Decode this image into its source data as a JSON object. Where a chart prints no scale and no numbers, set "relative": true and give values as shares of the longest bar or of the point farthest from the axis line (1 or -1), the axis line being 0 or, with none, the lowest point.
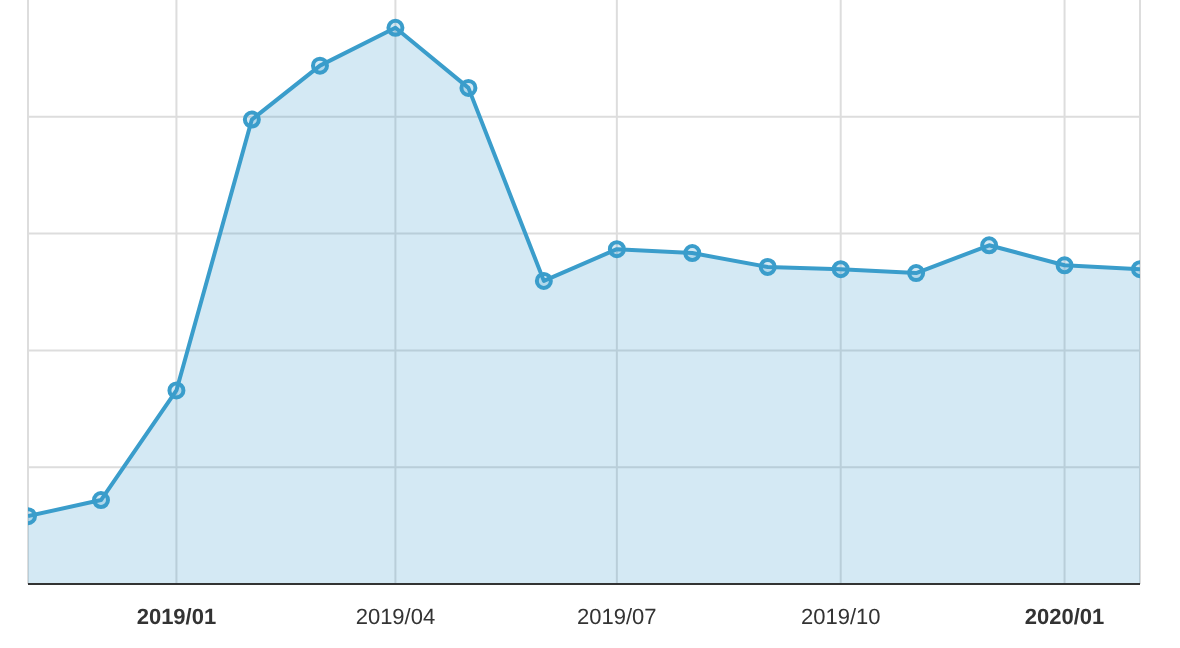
{
  "chart_data": {
    "type": "area",
    "relative": true,
    "x": [
      "2018-11",
      "2018-12",
      "2019-01",
      "2019-02",
      "2019-03",
      "2019-04",
      "2019-05",
      "2019-06",
      "2019-07",
      "2019-08",
      "2019-09",
      "2019-10",
      "2019-11",
      "2019-12",
      "2020-01",
      "2020-02"
    ],
    "series": [
      {
        "color": "#3a9dcb",
        "values": [
          0.122,
          0.151,
          0.348,
          0.835,
          0.932,
          1,
          0.892,
          0.545,
          0.602,
          0.595,
          0.57,
          0.566,
          0.559,
          0.609,
          0.573,
          0.566
        ]
      }
    ],
    "xlim": [
      "2018-11",
      "2020-02"
    ],
    "xticks": [
      {
        "value": "2019-01",
        "label": "2019/01"
      },
      {
        "value": "2019-04",
        "label": "2019/04"
      },
      {
        "value": "2019-07",
        "label": "2019/07"
      },
      {
        "value": "2019-10",
        "label": "2019/10"
      },
      {
        "value": "2020-01",
        "label": "2020/01"
      }
    ],
    "grid": true,
    "marker": "circle",
    "line_style": "solid"
  }
}
